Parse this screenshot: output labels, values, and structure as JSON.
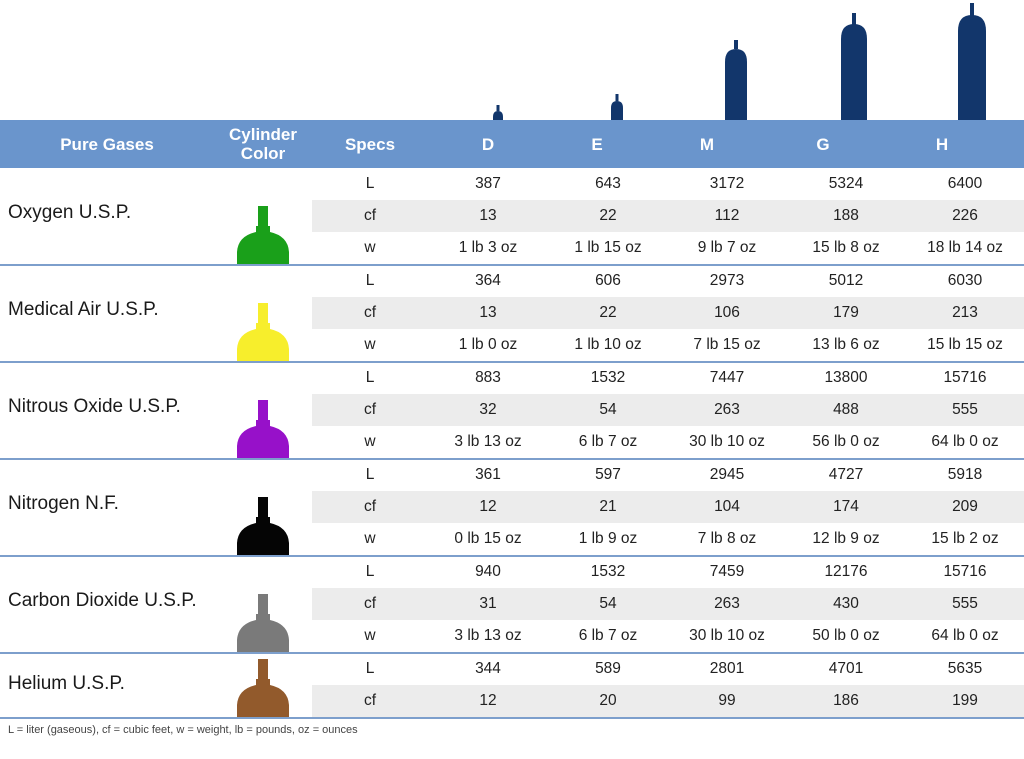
{
  "header": {
    "pure_gases": "Pure Gases",
    "cylinder_color": "Cylinder Color",
    "specs": "Specs",
    "sizes": [
      "D",
      "E",
      "M",
      "G",
      "H"
    ]
  },
  "colors": {
    "header_bg": "#6a95cc",
    "tank": "#12366b",
    "row_shade": "#ececec",
    "divider": "#7d9fcc"
  },
  "gases": [
    {
      "name": "Oxygen U.S.P.",
      "color": "#1aa01a",
      "rows": [
        {
          "spec": "L",
          "values": [
            "387",
            "643",
            "3172",
            "5324",
            "6400"
          ]
        },
        {
          "spec": "cf",
          "values": [
            "13",
            "22",
            "112",
            "188",
            "226"
          ]
        },
        {
          "spec": "w",
          "values": [
            "1 lb 3 oz",
            "1 lb 15 oz",
            "9 lb 7 oz",
            "15 lb 8 oz",
            "18 lb 14 oz"
          ]
        }
      ]
    },
    {
      "name": "Medical Air U.S.P.",
      "color": "#f7ee2c",
      "rows": [
        {
          "spec": "L",
          "values": [
            "364",
            "606",
            "2973",
            "5012",
            "6030"
          ]
        },
        {
          "spec": "cf",
          "values": [
            "13",
            "22",
            "106",
            "179",
            "213"
          ]
        },
        {
          "spec": "w",
          "values": [
            "1 lb 0 oz",
            "1 lb 10 oz",
            "7 lb 15 oz",
            "13 lb 6 oz",
            "15 lb 15 oz"
          ]
        }
      ]
    },
    {
      "name": "Nitrous Oxide U.S.P.",
      "color": "#9711c9",
      "rows": [
        {
          "spec": "L",
          "values": [
            "883",
            "1532",
            "7447",
            "13800",
            "15716"
          ]
        },
        {
          "spec": "cf",
          "values": [
            "32",
            "54",
            "263",
            "488",
            "555"
          ]
        },
        {
          "spec": "w",
          "values": [
            "3 lb 13 oz",
            "6 lb 7 oz",
            "30 lb 10 oz",
            "56 lb 0 oz",
            "64 lb 0 oz"
          ]
        }
      ]
    },
    {
      "name": "Nitrogen N.F.",
      "color": "#050505",
      "rows": [
        {
          "spec": "L",
          "values": [
            "361",
            "597",
            "2945",
            "4727",
            "5918"
          ]
        },
        {
          "spec": "cf",
          "values": [
            "12",
            "21",
            "104",
            "174",
            "209"
          ]
        },
        {
          "spec": "w",
          "values": [
            "0 lb 15 oz",
            "1 lb 9 oz",
            "7 lb 8 oz",
            "12 lb 9 oz",
            "15 lb 2 oz"
          ]
        }
      ]
    },
    {
      "name": "Carbon Dioxide U.S.P.",
      "color": "#7a7a7a",
      "rows": [
        {
          "spec": "L",
          "values": [
            "940",
            "1532",
            "7459",
            "12176",
            "15716"
          ]
        },
        {
          "spec": "cf",
          "values": [
            "31",
            "54",
            "263",
            "430",
            "555"
          ]
        },
        {
          "spec": "w",
          "values": [
            "3 lb 13 oz",
            "6 lb 7 oz",
            "30 lb 10 oz",
            "50 lb 0 oz",
            "64 lb 0 oz"
          ]
        }
      ]
    },
    {
      "name": "Helium U.S.P.",
      "color": "#925a2c",
      "rows": [
        {
          "spec": "L",
          "values": [
            "344",
            "589",
            "2801",
            "4701",
            "5635"
          ]
        },
        {
          "spec": "cf",
          "values": [
            "12",
            "20",
            "99",
            "186",
            "199"
          ]
        }
      ]
    }
  ],
  "footnote": "L = liter (gaseous),   cf = cubic feet,   w = weight,   lb = pounds,   oz = ounces"
}
